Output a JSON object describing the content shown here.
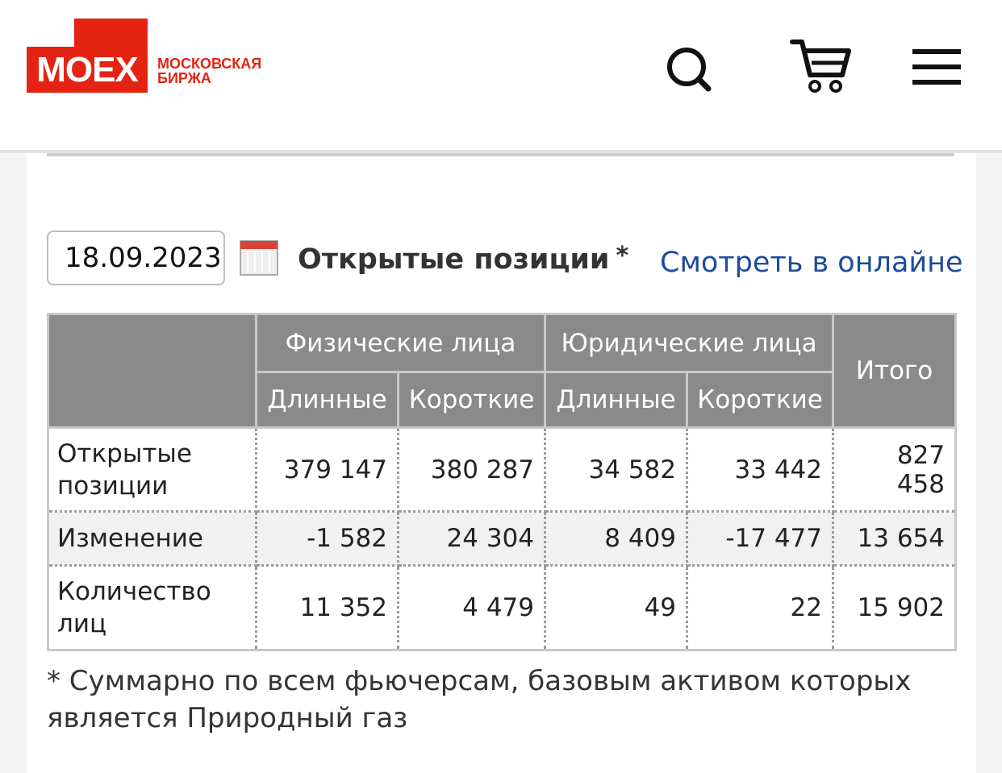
{
  "header": {
    "logo": "MOEX",
    "logo_subtitle": [
      "МОСКОВСКАЯ",
      "БИРЖА"
    ]
  },
  "date": "18.09.2023",
  "title": "Открытые позиции",
  "title_mark": "*",
  "link": "Смотреть в онлайне",
  "table": {
    "groups": [
      "Физические лица",
      "Юридические лица"
    ],
    "total": "Итого",
    "subheaders": [
      "Длинные",
      "Короткие",
      "Длинные",
      "Короткие"
    ],
    "rows": [
      [
        "Открытые позиции",
        "379 147",
        "380 287",
        "34 582",
        "33 442",
        "827 458"
      ],
      [
        "Изменение",
        "-1 582",
        "24 304",
        "8 409",
        "-17 477",
        "13 654"
      ],
      [
        "Количество лиц",
        "11 352",
        "4 479",
        "49",
        "22",
        "15 902"
      ]
    ]
  },
  "footnote": "* Суммарно по всем фьючерсам, базовым активом которых является Природный газ"
}
